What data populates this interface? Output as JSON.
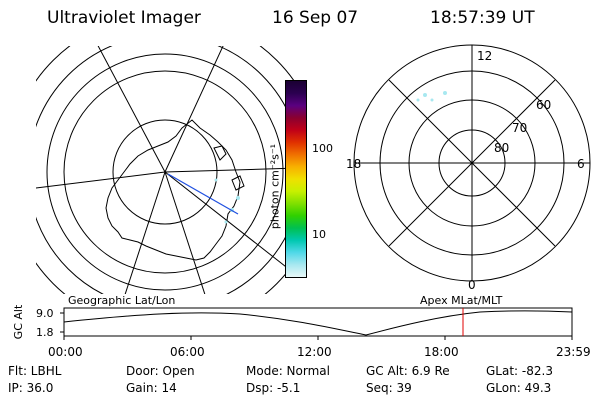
{
  "header": {
    "title": "Ultraviolet Imager",
    "date": "16 Sep 07",
    "time": "18:57:39 UT"
  },
  "geo_map": {
    "label": "Geographic Lat/Lon"
  },
  "colorbar": {
    "unit": "photon cm⁻²s⁻¹",
    "tick_100": "100",
    "tick_10": "10",
    "colors": [
      "#1a0033",
      "#2b0050",
      "#5a0080",
      "#8a0030",
      "#c00018",
      "#e03000",
      "#f07000",
      "#f8b000",
      "#f0e000",
      "#c8f000",
      "#80e000",
      "#30d000",
      "#00c050",
      "#00c8b0",
      "#50d8e8",
      "#a8e8f0",
      "#e8f8f8"
    ]
  },
  "polar_map": {
    "label": "Apex MLat/MLT",
    "mlt_12": "12",
    "mlt_18": "18",
    "mlt_6": "6",
    "mlt_0": "0",
    "lat_60": "60",
    "lat_70": "70",
    "lat_80": "80"
  },
  "altitude_plot": {
    "ylabel": "GC Alt",
    "ytick_top": "9.0",
    "ytick_bottom": "1.8",
    "xticks": [
      "00:00",
      "06:00",
      "12:00",
      "18:00",
      "23:59"
    ],
    "current_time_color": "#e00000"
  },
  "status": {
    "flt": "Flt: LBHL",
    "ip": "IP: 36.0",
    "door": "Door: Open",
    "gain": "Gain: 14",
    "mode": "Mode: Normal",
    "dsp": "Dsp:   -5.1",
    "gc_alt": "GC Alt: 6.9 Re",
    "seq": "Seq: 39",
    "glat": "GLat: -82.3",
    "glon": "GLon:  49.3"
  }
}
